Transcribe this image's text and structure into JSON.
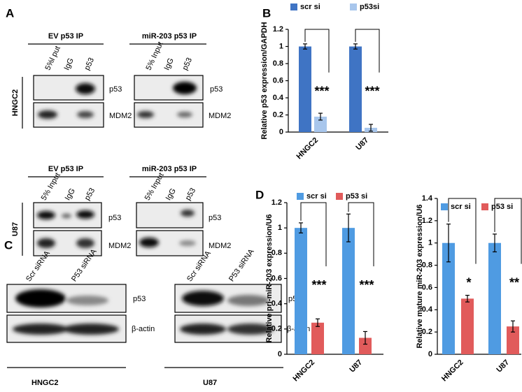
{
  "blots": {
    "panel_a": {
      "label": "A",
      "top": {
        "headers": [
          "EV p53 IP",
          "miR-203 p53 IP"
        ],
        "lanes_left": [
          "5%l put",
          "IgG",
          "p53"
        ],
        "lanes_right": [
          "5% Input",
          "IgG",
          "p53"
        ],
        "cell": "HNGC2",
        "rows": [
          "p53",
          "MDM2"
        ]
      },
      "bottom": {
        "headers": [
          "EV p53 IP",
          "miR-203 p53 IP"
        ],
        "lanes_left": [
          "5% Input",
          "IgG",
          "p53"
        ],
        "lanes_right": [
          "5% Input",
          "IgG",
          "p53"
        ],
        "cell": "U87",
        "rows": [
          "p53",
          "MDM2"
        ]
      }
    },
    "panel_c": {
      "label": "C",
      "lanes": [
        "Scr siRNA",
        "P53 siRNA"
      ],
      "rows": [
        "p53",
        "β-actin"
      ],
      "cells": [
        "HNGC2",
        "U87"
      ]
    },
    "panel_d": {
      "label": "D"
    }
  },
  "chart_data": [
    {
      "type": "bar",
      "panel": "B",
      "ylabel": "Relative p53 expression/GAPDH",
      "categories": [
        "HNGC2",
        "U87"
      ],
      "series": [
        {
          "name": "scr si",
          "color": "#3f74c4",
          "values": [
            1,
            1
          ],
          "errors": [
            0.03,
            0.03
          ]
        },
        {
          "name": "p53si",
          "color": "#a8c6ec",
          "values": [
            0.18,
            0.05
          ],
          "errors": [
            0.04,
            0.04
          ]
        }
      ],
      "annotations": [
        "***",
        "***"
      ],
      "ylim": [
        0,
        1.2
      ],
      "yticks": [
        0,
        0.2,
        0.4,
        0.6,
        0.8,
        1,
        1.2
      ]
    },
    {
      "type": "bar",
      "ylabel": "Relative pri-miR-203 expression/U6",
      "categories": [
        "HNGC2",
        "U87"
      ],
      "series": [
        {
          "name": "scr si",
          "color": "#4f9be2",
          "values": [
            1,
            1
          ],
          "errors": [
            0.04,
            0.11
          ]
        },
        {
          "name": "p53 si",
          "color": "#e15b5b",
          "values": [
            0.25,
            0.13
          ],
          "errors": [
            0.03,
            0.05
          ]
        }
      ],
      "annotations": [
        "***",
        "***"
      ],
      "ylim": [
        0,
        1.2
      ],
      "yticks": [
        0,
        0.2,
        0.4,
        0.6,
        0.8,
        1,
        1.2
      ]
    },
    {
      "type": "bar",
      "ylabel": "Relative mature miR-203 expression/U6",
      "categories": [
        "HNGC2",
        "U87"
      ],
      "series": [
        {
          "name": "scr si",
          "color": "#4f9be2",
          "values": [
            1,
            1
          ],
          "errors": [
            0.17,
            0.08
          ]
        },
        {
          "name": "p53 si",
          "color": "#e15b5b",
          "values": [
            0.5,
            0.25
          ],
          "errors": [
            0.03,
            0.05
          ]
        }
      ],
      "annotations": [
        "*",
        "**"
      ],
      "ylim": [
        0,
        1.4
      ],
      "yticks": [
        0,
        0.2,
        0.4,
        0.6,
        0.8,
        1,
        1.2,
        1.4
      ]
    }
  ]
}
